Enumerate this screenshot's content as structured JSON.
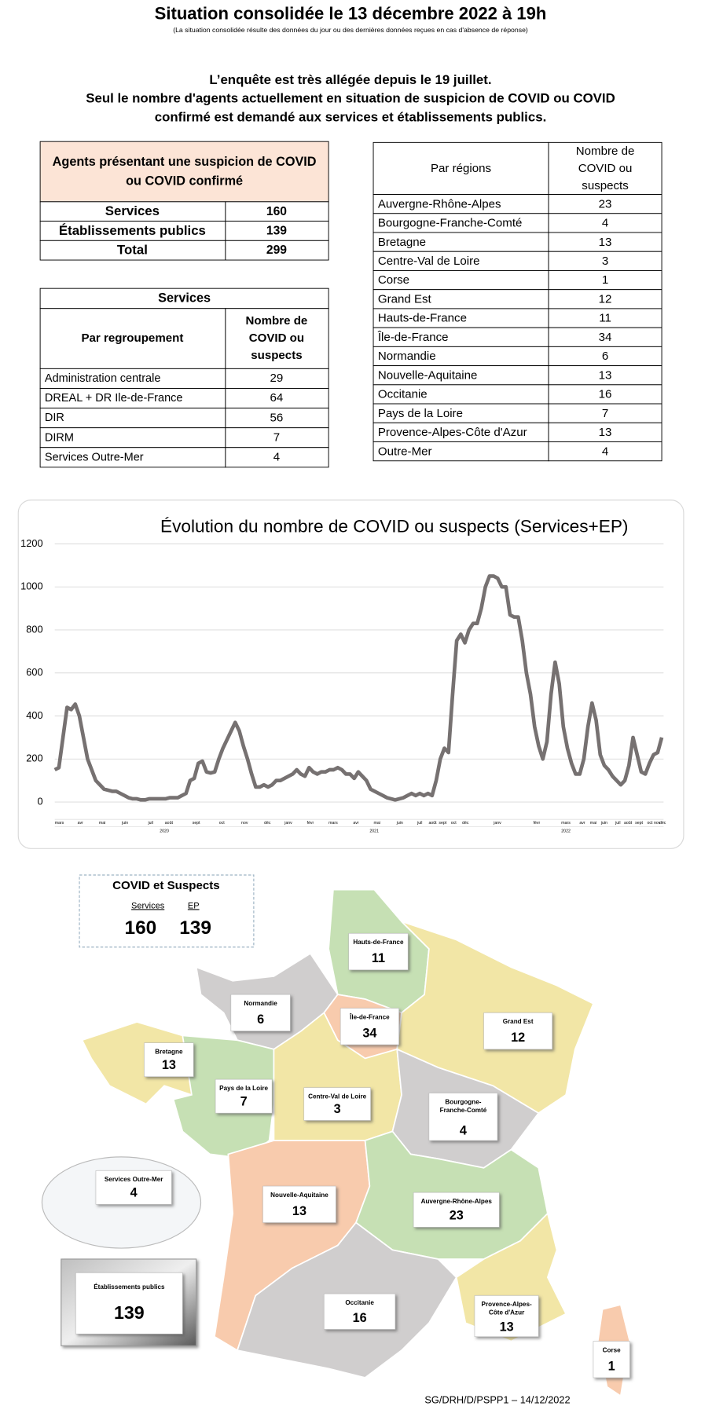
{
  "header": {
    "title": "Situation consolidée le 13 décembre 2022 à 19h",
    "subtitle": "(La situation consolidée résulte des données du jour ou des dernières données reçues en cas d'absence de réponse)"
  },
  "intro": [
    "L’enquête est très allégée depuis le 19 juillet.",
    "Seul le nombre d'agents actuellement en situation de suspicion de COVID ou COVID",
    "confirmé est demandé aux services et établissements publics."
  ],
  "summary_table": {
    "header": [
      "Agents présentant une suspicion de COVID",
      "ou COVID confirmé"
    ],
    "rows": [
      [
        "Services",
        "160"
      ],
      [
        "Établissements publics",
        "139"
      ],
      [
        "Total",
        "299"
      ]
    ]
  },
  "services_table": {
    "title": "Services",
    "columns": [
      "Par regroupement",
      [
        "Nombre de",
        "COVID ou",
        "suspects"
      ]
    ],
    "rows": [
      [
        "Administration centrale",
        "29"
      ],
      [
        "DREAL + DR Ile-de-France",
        "64"
      ],
      [
        "DIR",
        "56"
      ],
      [
        "DIRM",
        "7"
      ],
      [
        "Services Outre-Mer",
        "4"
      ]
    ]
  },
  "regions_table": {
    "columns": [
      "Par régions",
      [
        "Nombre de",
        "COVID ou",
        "suspects"
      ]
    ],
    "rows": [
      [
        "Auvergne-Rhône-Alpes",
        "23"
      ],
      [
        "Bourgogne-Franche-Comté",
        "4"
      ],
      [
        "Bretagne",
        "13"
      ],
      [
        "Centre-Val de Loire",
        "3"
      ],
      [
        "Corse",
        "1"
      ],
      [
        "Grand Est",
        "12"
      ],
      [
        "Hauts-de-France",
        "11"
      ],
      [
        "Île-de-France",
        "34"
      ],
      [
        "Normandie",
        "6"
      ],
      [
        "Nouvelle-Aquitaine",
        "13"
      ],
      [
        "Occitanie",
        "16"
      ],
      [
        "Pays de la Loire",
        "7"
      ],
      [
        "Provence-Alpes-Côte d'Azur",
        "13"
      ],
      [
        "Outre-Mer",
        "4"
      ]
    ]
  },
  "chart_data": {
    "type": "line",
    "title": "Évolution du nombre de COVID ou suspects (Services+EP)",
    "color": "#767171",
    "ylim": [
      0,
      1200
    ],
    "yticks": [
      0,
      200,
      400,
      600,
      800,
      1000,
      1200
    ],
    "grid": true,
    "x_month_labels": [
      "mars",
      "avr",
      "mai",
      "juin",
      "juil",
      "août",
      "sept",
      "oct",
      "nov",
      "déc",
      "janv",
      "févr",
      "mars",
      "avr",
      "mai",
      "juin",
      "juil",
      "août",
      "sept",
      "oct",
      "déc",
      "janv",
      "févr",
      "mars",
      "avr",
      "mai",
      "juin",
      "juil",
      "août",
      "sept",
      "oct",
      "nov",
      "déc"
    ],
    "x_year_labels": [
      "2020",
      "2021",
      "2022"
    ],
    "values": [
      150,
      160,
      300,
      440,
      430,
      455,
      400,
      300,
      200,
      150,
      100,
      80,
      60,
      55,
      50,
      50,
      40,
      30,
      20,
      15,
      15,
      10,
      10,
      15,
      15,
      15,
      15,
      15,
      20,
      20,
      20,
      30,
      40,
      100,
      110,
      180,
      190,
      140,
      135,
      140,
      200,
      250,
      290,
      330,
      370,
      330,
      260,
      200,
      130,
      70,
      70,
      80,
      70,
      80,
      100,
      100,
      110,
      120,
      130,
      150,
      130,
      120,
      160,
      140,
      130,
      140,
      140,
      150,
      150,
      160,
      150,
      130,
      130,
      110,
      140,
      120,
      100,
      60,
      50,
      40,
      30,
      20,
      15,
      10,
      15,
      20,
      30,
      40,
      30,
      40,
      30,
      40,
      30,
      100,
      200,
      250,
      230,
      500,
      750,
      780,
      740,
      800,
      830,
      830,
      900,
      1000,
      1050,
      1050,
      1040,
      1000,
      1000,
      870,
      860,
      860,
      750,
      600,
      500,
      350,
      260,
      200,
      280,
      500,
      650,
      550,
      350,
      250,
      180,
      130,
      130,
      200,
      350,
      460,
      380,
      220,
      170,
      150,
      120,
      100,
      80,
      100,
      170,
      300,
      220,
      140,
      130,
      180,
      220,
      230,
      300
    ]
  },
  "map": {
    "legend": {
      "title": "COVID et Suspects",
      "services_label": "Services",
      "ep_label": "EP",
      "services_value": "160",
      "ep_value": "139"
    },
    "regions": [
      {
        "name": [
          "Hauts-de-France"
        ],
        "value": "11"
      },
      {
        "name": [
          "Normandie"
        ],
        "value": "6"
      },
      {
        "name": [
          "Île-de-France"
        ],
        "value": "34"
      },
      {
        "name": [
          "Grand Est"
        ],
        "value": "12"
      },
      {
        "name": [
          "Bretagne"
        ],
        "value": "13"
      },
      {
        "name": [
          "Pays de la Loire"
        ],
        "value": "7"
      },
      {
        "name": [
          "Centre-Val de Loire"
        ],
        "value": "3"
      },
      {
        "name": [
          "Bourgogne-",
          "Franche-Comté"
        ],
        "value": "4"
      },
      {
        "name": [
          "Services Outre-Mer"
        ],
        "value": "4"
      },
      {
        "name": [
          "Nouvelle-Aquitaine"
        ],
        "value": "13"
      },
      {
        "name": [
          "Auvergne-Rhône-Alpes"
        ],
        "value": "23"
      },
      {
        "name": [
          "Établissements publics"
        ],
        "value": "139"
      },
      {
        "name": [
          "Occitanie"
        ],
        "value": "16"
      },
      {
        "name": [
          "Provence-Alpes-",
          "Côte d'Azur"
        ],
        "value": "13"
      },
      {
        "name": [
          "Corse"
        ],
        "value": "1"
      }
    ],
    "footer": "SG/DRH/D/PSPP1 – 14/12/2022"
  }
}
